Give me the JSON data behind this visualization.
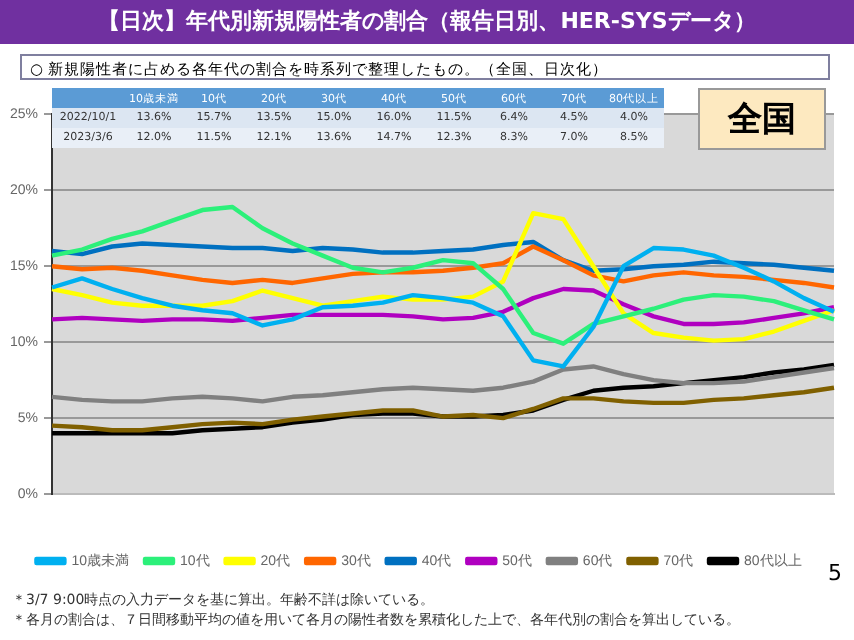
{
  "chart_data": {
    "type": "line",
    "title": "【日次】年代別新規陽性者の割合（報告日別、HER-SYSデータ）",
    "subtitle": "○ 新規陽性者に占める各年代の割合を時系列で整理したもの。（全国、日次化）",
    "annotations": [
      "全国",
      "2022/10/1",
      "13.6%",
      "15.7%",
      "13.5%",
      "15.0%",
      "16.0%",
      "11.5%",
      "6.4%",
      "4.5%",
      "4.0%",
      "2023/3/6",
      "12.0%",
      "11.5%",
      "12.1%",
      "13.6%",
      "14.7%",
      "12.3%",
      "8.3%",
      "7.0%",
      "8.5%",
      "＊3/7 9:00時点の入力データを基に算出。年齢不詳は除いている。",
      "＊各月の割合は、７日間移動平均の値を用いて各月の陽性者数を累積化した上で、各年代別の割合を算出している。",
      "5"
    ],
    "categories": [
      null,
      null,
      null,
      null,
      null,
      null,
      null,
      null,
      null,
      null,
      null,
      null,
      null,
      null,
      null,
      null,
      null,
      null,
      null,
      null,
      null,
      null,
      null,
      null,
      null,
      null,
      null
    ],
    "ylim": [
      0,
      25
    ],
    "yticks": [
      {
        "value": 0,
        "label": "0%"
      },
      {
        "value": 5,
        "label": "5%"
      },
      {
        "value": 10,
        "label": "10%"
      },
      {
        "value": 15,
        "label": "15%"
      },
      {
        "value": 20,
        "label": "20%"
      },
      {
        "value": 25,
        "label": "25%"
      }
    ],
    "tick_labels": "y",
    "grid": "y",
    "legend": "bottom",
    "series": [
      {
        "name": "10歳未満",
        "color": "#00b0f0",
        "values": [
          13.6,
          14.2,
          13.5,
          12.9,
          12.4,
          12.1,
          11.9,
          11.1,
          11.5,
          12.3,
          12.4,
          12.6,
          13.1,
          12.9,
          12.6,
          11.7,
          8.8,
          8.4,
          11.0,
          15.0,
          16.2,
          16.1,
          15.7,
          14.9,
          14.0,
          12.9,
          12.0
        ]
      },
      {
        "name": "10代",
        "color": "#2cf07a",
        "values": [
          15.7,
          16.1,
          16.8,
          17.3,
          18.0,
          18.7,
          18.9,
          17.5,
          16.5,
          15.7,
          14.9,
          14.6,
          14.9,
          15.4,
          15.2,
          13.5,
          10.6,
          9.9,
          11.2,
          11.7,
          12.2,
          12.8,
          13.1,
          13.0,
          12.7,
          12.1,
          11.5
        ]
      },
      {
        "name": "20代",
        "color": "#ffff00",
        "values": [
          13.5,
          13.1,
          12.6,
          12.4,
          12.4,
          12.4,
          12.7,
          13.4,
          12.9,
          12.4,
          12.7,
          13.0,
          12.8,
          12.8,
          13.0,
          14.0,
          18.5,
          18.1,
          15.0,
          11.9,
          10.6,
          10.3,
          10.1,
          10.2,
          10.7,
          11.4,
          12.1
        ]
      },
      {
        "name": "30代",
        "color": "#ff6600",
        "values": [
          15.0,
          14.8,
          14.9,
          14.7,
          14.4,
          14.1,
          13.9,
          14.1,
          13.9,
          14.2,
          14.5,
          14.6,
          14.6,
          14.7,
          14.9,
          15.2,
          16.3,
          15.4,
          14.4,
          14.0,
          14.4,
          14.6,
          14.4,
          14.3,
          14.1,
          13.9,
          13.6
        ]
      },
      {
        "name": "40代",
        "color": "#0070c0",
        "values": [
          16.0,
          15.8,
          16.3,
          16.5,
          16.4,
          16.3,
          16.2,
          16.2,
          16.0,
          16.2,
          16.1,
          15.9,
          15.9,
          16.0,
          16.1,
          16.4,
          16.6,
          15.4,
          14.7,
          14.8,
          15.0,
          15.1,
          15.3,
          15.2,
          15.1,
          14.9,
          14.7
        ]
      },
      {
        "name": "50代",
        "color": "#b000c0",
        "values": [
          11.5,
          11.6,
          11.5,
          11.4,
          11.5,
          11.5,
          11.4,
          11.6,
          11.8,
          11.8,
          11.8,
          11.8,
          11.7,
          11.5,
          11.6,
          12.0,
          12.9,
          13.5,
          13.4,
          12.5,
          11.7,
          11.2,
          11.2,
          11.3,
          11.6,
          11.9,
          12.3
        ]
      },
      {
        "name": "60代",
        "color": "#808080",
        "values": [
          6.4,
          6.2,
          6.1,
          6.1,
          6.3,
          6.4,
          6.3,
          6.1,
          6.4,
          6.5,
          6.7,
          6.9,
          7.0,
          6.9,
          6.8,
          7.0,
          7.4,
          8.2,
          8.4,
          7.9,
          7.5,
          7.3,
          7.3,
          7.4,
          7.7,
          8.0,
          8.3
        ]
      },
      {
        "name": "70代",
        "color": "#806000",
        "values": [
          4.5,
          4.4,
          4.2,
          4.2,
          4.4,
          4.6,
          4.7,
          4.6,
          4.9,
          5.1,
          5.3,
          5.5,
          5.5,
          5.1,
          5.2,
          5.0,
          5.6,
          6.3,
          6.3,
          6.1,
          6.0,
          6.0,
          6.2,
          6.3,
          6.5,
          6.7,
          7.0
        ]
      },
      {
        "name": "80代以上",
        "color": "#000000",
        "values": [
          4.0,
          4.0,
          4.0,
          4.0,
          4.0,
          4.2,
          4.3,
          4.4,
          4.7,
          4.9,
          5.2,
          5.3,
          5.3,
          5.1,
          5.1,
          5.2,
          5.5,
          6.2,
          6.8,
          7.0,
          7.1,
          7.3,
          7.5,
          7.7,
          8.0,
          8.2,
          8.5
        ]
      }
    ]
  }
}
